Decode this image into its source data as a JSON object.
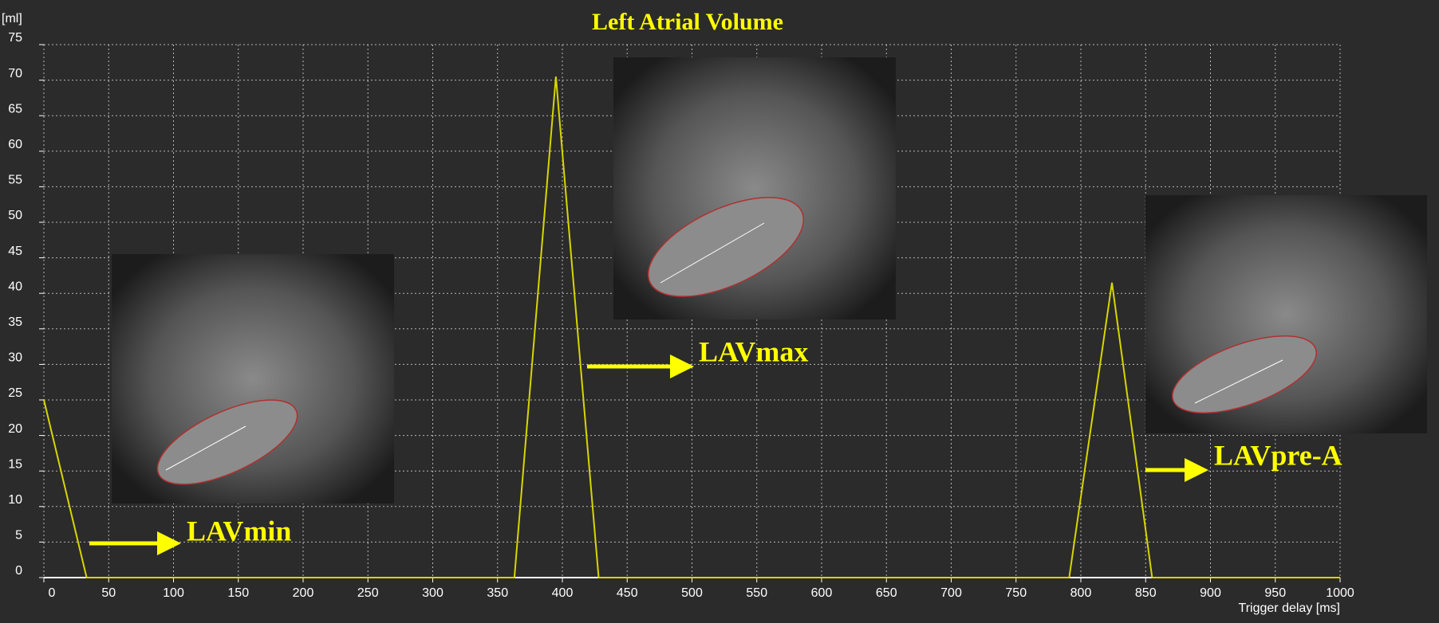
{
  "chart_data": {
    "type": "line",
    "title": "Left Atrial Volume",
    "x_label": "Trigger delay [ms]",
    "y_label": "[ml]",
    "x": [
      0,
      33,
      363,
      395,
      428,
      791,
      824,
      855,
      1000
    ],
    "series": [
      {
        "color": "#d6d600",
        "values": [
          25,
          0,
          0,
          70.5,
          0,
          0,
          41.5,
          0,
          0
        ]
      }
    ],
    "xlim": [
      0,
      1000
    ],
    "xticks": [
      0,
      50,
      100,
      150,
      200,
      250,
      300,
      350,
      400,
      450,
      500,
      550,
      600,
      650,
      700,
      750,
      800,
      850,
      900,
      950,
      1000
    ],
    "ylim": [
      0,
      75
    ],
    "yticks": [
      0,
      5,
      10,
      15,
      20,
      25,
      30,
      35,
      40,
      45,
      50,
      55,
      60,
      65,
      70,
      75
    ],
    "grid": true,
    "annotations": [
      "LAVmin",
      "LAVmax",
      "LAVpre-A"
    ]
  }
}
